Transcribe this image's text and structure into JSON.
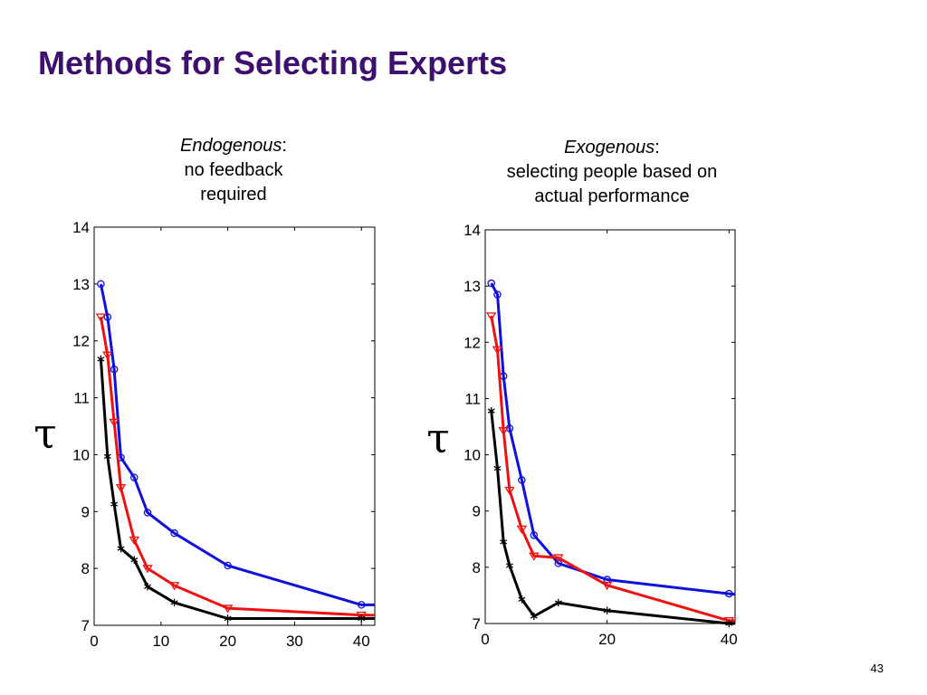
{
  "slide": {
    "title": "Methods for Selecting Experts",
    "page_number": "43"
  },
  "panels": [
    {
      "caption_emph": "Endogenous",
      "caption_colon": ":",
      "caption_line2": "no feedback",
      "caption_line3": "required",
      "ylabel": "τ"
    },
    {
      "caption_emph": "Exogenous",
      "caption_colon": ":",
      "caption_line2": "selecting people based on",
      "caption_line3": "actual performance",
      "ylabel": "τ"
    }
  ],
  "chart_data": [
    {
      "type": "line",
      "title": "",
      "xlabel": "",
      "ylabel": "τ",
      "xlim": [
        0,
        42
      ],
      "ylim": [
        7,
        14
      ],
      "xticks": [
        0,
        10,
        20,
        30,
        40
      ],
      "yticks": [
        7,
        8,
        9,
        10,
        11,
        12,
        13,
        14
      ],
      "grid": false,
      "legend": "none",
      "series": [
        {
          "color": "#1010dd",
          "marker": "circle",
          "x": [
            1,
            2,
            3,
            4,
            6,
            8,
            12,
            20,
            40,
            42
          ],
          "y": [
            13.0,
            12.42,
            11.5,
            9.95,
            9.6,
            8.98,
            8.62,
            8.05,
            7.36,
            7.36
          ]
        },
        {
          "color": "#ee1111",
          "marker": "triangle-down",
          "x": [
            1,
            2,
            3,
            4,
            6,
            8,
            12,
            20,
            40,
            42
          ],
          "y": [
            12.42,
            11.75,
            10.57,
            9.42,
            8.5,
            8.0,
            7.7,
            7.3,
            7.18,
            7.18
          ]
        },
        {
          "color": "#000000",
          "marker": "star",
          "x": [
            1,
            2,
            3,
            4,
            6,
            8,
            12,
            20,
            40,
            42
          ],
          "y": [
            11.68,
            9.97,
            9.13,
            8.35,
            8.15,
            7.68,
            7.4,
            7.12,
            7.12,
            7.12
          ]
        }
      ]
    },
    {
      "type": "line",
      "title": "",
      "xlabel": "",
      "ylabel": "τ",
      "xlim": [
        0,
        41
      ],
      "ylim": [
        7,
        14
      ],
      "xticks": [
        0,
        20,
        40
      ],
      "yticks": [
        7,
        8,
        9,
        10,
        11,
        12,
        13,
        14
      ],
      "grid": false,
      "legend": "none",
      "series": [
        {
          "color": "#1010dd",
          "marker": "circle",
          "x": [
            1,
            2,
            3,
            4,
            6,
            8,
            12,
            20,
            40,
            41
          ],
          "y": [
            13.05,
            12.85,
            11.4,
            10.47,
            9.55,
            8.57,
            8.07,
            7.78,
            7.53,
            7.52
          ]
        },
        {
          "color": "#ee1111",
          "marker": "triangle-down",
          "x": [
            1,
            2,
            3,
            4,
            6,
            8,
            12,
            20,
            40,
            41
          ],
          "y": [
            12.47,
            11.87,
            10.43,
            9.37,
            8.68,
            8.2,
            8.17,
            7.68,
            7.05,
            7.05
          ]
        },
        {
          "color": "#000000",
          "marker": "star",
          "x": [
            1,
            2,
            3,
            4,
            6,
            8,
            12,
            20,
            40,
            41
          ],
          "y": [
            10.78,
            9.76,
            8.45,
            8.03,
            7.43,
            7.13,
            7.37,
            7.23,
            7.0,
            7.0
          ]
        }
      ]
    }
  ]
}
